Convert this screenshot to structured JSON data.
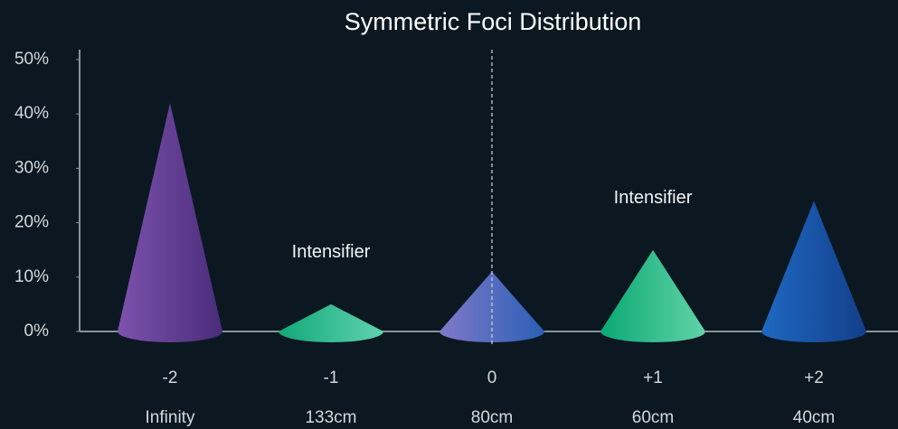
{
  "chart_data": {
    "type": "cone",
    "title": "Symmetric Foci Distribution",
    "categories": [
      "-2",
      "-1",
      "0",
      "+1",
      "+2"
    ],
    "distances": [
      "Infinity",
      "133cm",
      "80cm",
      "60cm",
      "40cm"
    ],
    "values": [
      42,
      5,
      11,
      15,
      24
    ],
    "colors": [
      [
        "#7d52ad",
        "#4a2c7a"
      ],
      [
        "#12a878",
        "#5fd3ae"
      ],
      [
        "#7f79c9",
        "#2a5fb5"
      ],
      [
        "#0aa874",
        "#62d3a8"
      ],
      [
        "#1f68c2",
        "#123f8a"
      ]
    ],
    "ylim": [
      0,
      50
    ],
    "yticks": [
      {
        "value": 0,
        "label": "0%"
      },
      {
        "value": 10,
        "label": "10%"
      },
      {
        "value": 20,
        "label": "20%"
      },
      {
        "value": 30,
        "label": "30%"
      },
      {
        "value": 40,
        "label": "40%"
      },
      {
        "value": 50,
        "label": "50%"
      }
    ],
    "grid": false,
    "reference_line": {
      "x": "0",
      "style": "dashed"
    },
    "annotations": [
      {
        "text": "Intensifier",
        "x": "-1"
      },
      {
        "text": "Intensifier",
        "x": "+1"
      }
    ]
  }
}
